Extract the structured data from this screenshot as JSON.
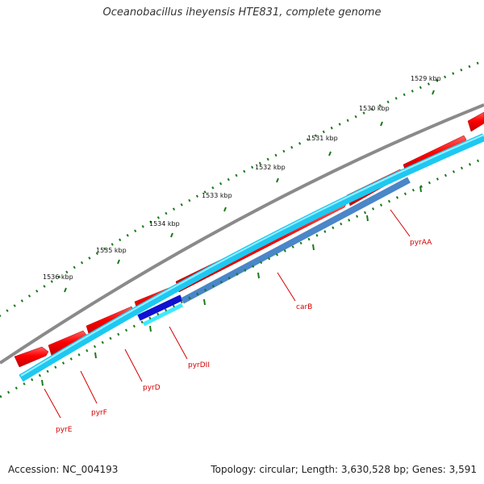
{
  "title": "Oceanobacillus iheyensis HTE831, complete genome",
  "footer": {
    "accession": "Accession: NC_004193",
    "stats": "Topology: circular; Length: 3,630,528 bp; Genes: 3,591"
  },
  "tick_labels": [
    "1536 kbp",
    "1535 kbp",
    "1534 kbp",
    "1533 kbp",
    "1532 kbp",
    "1531 kbp",
    "1530 kbp",
    "1529 kbp"
  ],
  "genes": [
    "pyrE",
    "pyrF",
    "pyrD",
    "pyrDII",
    "carB",
    "pyrAA"
  ],
  "colors": {
    "backbone": "#8a8a8a",
    "cds_forward": "#ff0000",
    "gene_track": "#1ec8f0",
    "highlight_dark": "#1010d0",
    "highlight_light": "#40e8ff",
    "highlight_steel": "#4a86c8",
    "tick": "#1a7a1a",
    "gene_label": "#d40000"
  }
}
